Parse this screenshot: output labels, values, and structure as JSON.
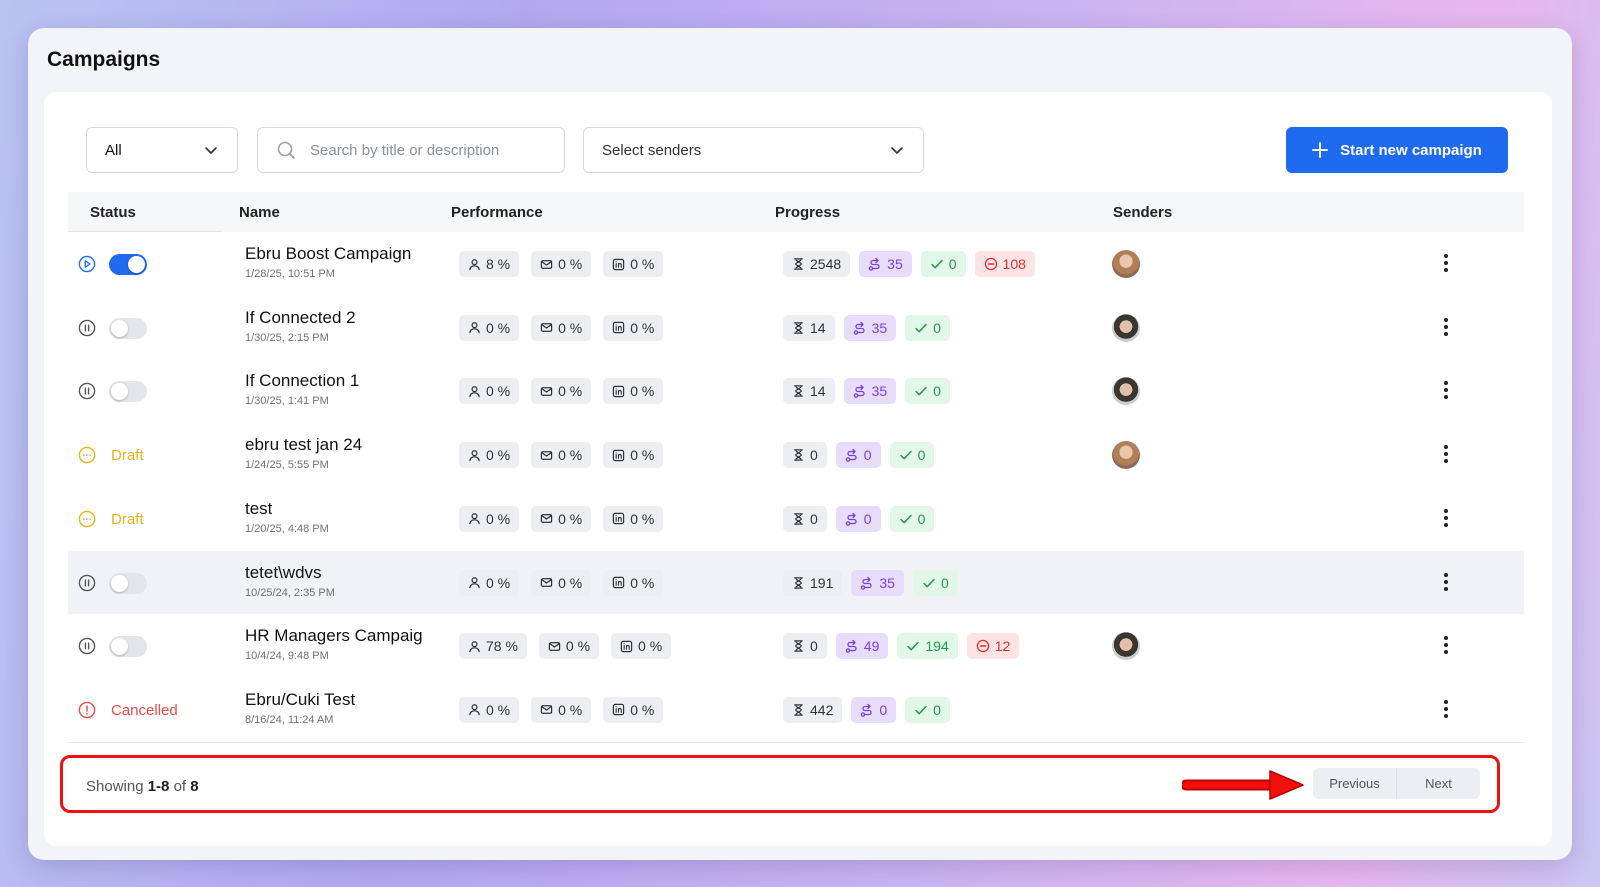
{
  "page": {
    "title": "Campaigns"
  },
  "toolbar": {
    "filter_value": "All",
    "search_placeholder": "Search by title or description",
    "senders_placeholder": "Select senders",
    "new_campaign_label": "Start new campaign"
  },
  "table": {
    "headers": {
      "status": "Status",
      "name": "Name",
      "performance": "Performance",
      "progress": "Progress",
      "senders": "Senders"
    },
    "rows": [
      {
        "status": "active",
        "toggle_on": true,
        "name": "Ebru Boost Campaign",
        "date": "1/28/25, 10:51 PM",
        "performance": [
          "8 %",
          "0 %",
          "0 %"
        ],
        "progress": {
          "pending": "2548",
          "steps": "35",
          "done": "0",
          "failed": "108"
        },
        "sender": "woman"
      },
      {
        "status": "paused",
        "toggle_on": false,
        "name": "If Connected 2",
        "date": "1/30/25, 2:15 PM",
        "performance": [
          "0 %",
          "0 %",
          "0 %"
        ],
        "progress": {
          "pending": "14",
          "steps": "35",
          "done": "0"
        },
        "sender": "man"
      },
      {
        "status": "paused",
        "toggle_on": false,
        "name": "If Connection 1",
        "date": "1/30/25, 1:41 PM",
        "performance": [
          "0 %",
          "0 %",
          "0 %"
        ],
        "progress": {
          "pending": "14",
          "steps": "35",
          "done": "0"
        },
        "sender": "man"
      },
      {
        "status": "draft",
        "status_label": "Draft",
        "name": "ebru test jan 24",
        "date": "1/24/25, 5:55 PM",
        "performance": [
          "0 %",
          "0 %",
          "0 %"
        ],
        "progress": {
          "pending": "0",
          "steps": "0",
          "done": "0"
        },
        "sender": "woman"
      },
      {
        "status": "draft",
        "status_label": "Draft",
        "name": "test",
        "date": "1/20/25, 4:48 PM",
        "performance": [
          "0 %",
          "0 %",
          "0 %"
        ],
        "progress": {
          "pending": "0",
          "steps": "0",
          "done": "0"
        }
      },
      {
        "status": "paused",
        "toggle_on": false,
        "name": "tetet\\wdvs",
        "date": "10/25/24, 2:35 PM",
        "performance": [
          "0 %",
          "0 %",
          "0 %"
        ],
        "progress": {
          "pending": "191",
          "steps": "35",
          "done": "0"
        },
        "hover": true
      },
      {
        "status": "paused",
        "toggle_on": false,
        "name": "HR Managers Campaig",
        "date": "10/4/24, 9:48 PM",
        "performance": [
          "78 %",
          "0 %",
          "0 %"
        ],
        "progress": {
          "pending": "0",
          "steps": "49",
          "done": "194",
          "failed": "12"
        },
        "sender": "man"
      },
      {
        "status": "cancelled",
        "status_label": "Cancelled",
        "name": "Ebru/Cuki Test",
        "date": "8/16/24, 11:24 AM",
        "performance": [
          "0 %",
          "0 %",
          "0 %"
        ],
        "progress": {
          "pending": "442",
          "steps": "0",
          "done": "0"
        }
      }
    ]
  },
  "footer": {
    "showing_prefix": "Showing ",
    "showing_range": "1-8",
    "showing_of": " of ",
    "showing_total": "8",
    "previous_label": "Previous",
    "next_label": "Next"
  },
  "icons": {
    "performance": [
      "person-icon",
      "mail-icon",
      "linkedin-icon"
    ],
    "progress": [
      "hourglass-icon",
      "route-icon",
      "check-icon",
      "minus-circle-icon"
    ]
  },
  "colors": {
    "accent": "#1f6bf0",
    "draft": "#e8b21c",
    "cancelled": "#ef4b4b",
    "annotation": "#f01010"
  }
}
